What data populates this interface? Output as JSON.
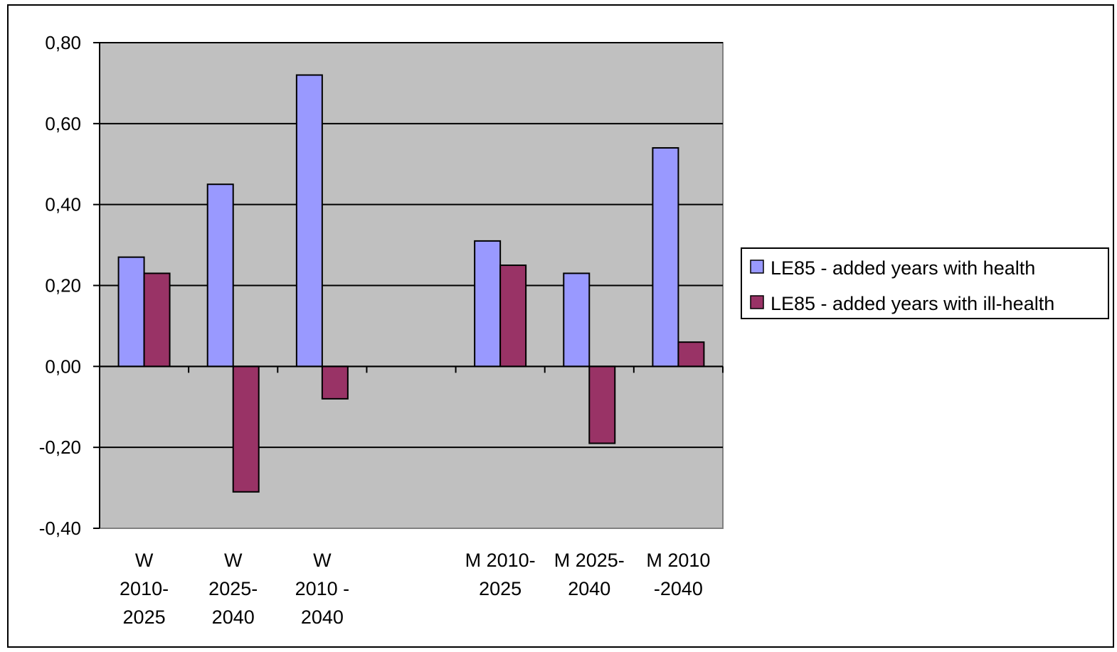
{
  "chart_data": {
    "type": "bar",
    "categories": [
      [
        "W",
        "2010-",
        "2025"
      ],
      [
        "W",
        "2025-",
        "2040"
      ],
      [
        "W",
        "2010 -",
        "2040"
      ],
      [],
      [
        "M 2010-",
        "2025"
      ],
      [
        "M 2025-",
        "2040"
      ],
      [
        "M  2010",
        "-2040"
      ]
    ],
    "series": [
      {
        "name": "LE85 - added years with health",
        "color": "#9999ff",
        "values": [
          0.27,
          0.45,
          0.72,
          null,
          0.31,
          0.23,
          0.54
        ]
      },
      {
        "name": "LE85 - added years with ill-health",
        "color": "#993366",
        "values": [
          0.23,
          -0.31,
          -0.08,
          null,
          0.25,
          -0.19,
          0.06
        ]
      }
    ],
    "ylim": [
      -0.4,
      0.8
    ],
    "yticks": [
      -0.4,
      -0.2,
      0.0,
      0.2,
      0.4,
      0.6,
      0.8
    ],
    "ytick_labels": [
      "-0,40",
      "-0,20",
      "0,00",
      "0,20",
      "0,40",
      "0,60",
      "0,80"
    ],
    "gridlines": true,
    "plot_background": "#c0c0c0",
    "legend_position": "right"
  }
}
